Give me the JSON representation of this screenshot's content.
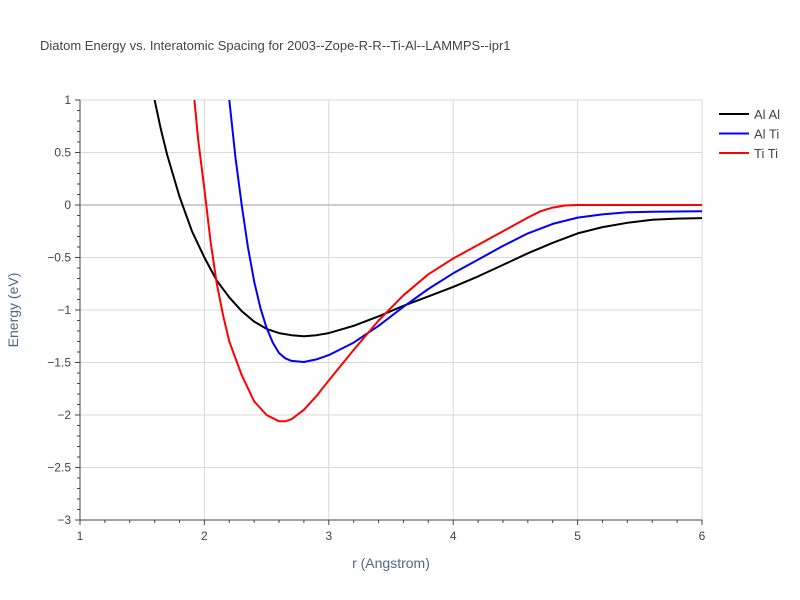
{
  "chart_data": {
    "type": "line",
    "title": "Diatom Energy vs. Interatomic Spacing for 2003--Zope-R-R--Ti-Al--LAMMPS--ipr1",
    "xlabel": "r (Angstrom)",
    "ylabel": "Energy (eV)",
    "xlim": [
      1,
      6
    ],
    "ylim": [
      -3,
      1
    ],
    "x_ticks": [
      1,
      2,
      3,
      4,
      5,
      6
    ],
    "x_tick_labels": [
      "1",
      "2",
      "3",
      "4",
      "5",
      "6"
    ],
    "y_ticks": [
      1,
      0.5,
      0,
      -0.5,
      -1,
      -1.5,
      -2,
      -2.5,
      -3
    ],
    "y_tick_labels": [
      "1",
      "0.5",
      "0",
      "−0.5",
      "−1",
      "−1.5",
      "−2",
      "−2.5",
      "−3"
    ],
    "grid": true,
    "legend_position": "top-right",
    "series": [
      {
        "name": "Al Al",
        "color": "#000000",
        "points": [
          [
            1.6,
            1.0
          ],
          [
            1.65,
            0.72
          ],
          [
            1.7,
            0.48
          ],
          [
            1.8,
            0.08
          ],
          [
            1.9,
            -0.25
          ],
          [
            2.0,
            -0.5
          ],
          [
            2.1,
            -0.72
          ],
          [
            2.2,
            -0.88
          ],
          [
            2.3,
            -1.01
          ],
          [
            2.4,
            -1.11
          ],
          [
            2.5,
            -1.18
          ],
          [
            2.6,
            -1.22
          ],
          [
            2.7,
            -1.24
          ],
          [
            2.8,
            -1.25
          ],
          [
            2.9,
            -1.24
          ],
          [
            3.0,
            -1.22
          ],
          [
            3.2,
            -1.15
          ],
          [
            3.4,
            -1.06
          ],
          [
            3.6,
            -0.96
          ],
          [
            3.8,
            -0.87
          ],
          [
            4.0,
            -0.78
          ],
          [
            4.2,
            -0.68
          ],
          [
            4.4,
            -0.57
          ],
          [
            4.6,
            -0.46
          ],
          [
            4.8,
            -0.36
          ],
          [
            5.0,
            -0.27
          ],
          [
            5.2,
            -0.21
          ],
          [
            5.4,
            -0.17
          ],
          [
            5.6,
            -0.14
          ],
          [
            5.8,
            -0.13
          ],
          [
            6.0,
            -0.125
          ]
        ]
      },
      {
        "name": "Al Ti",
        "color": "#0000ff",
        "points": [
          [
            2.2,
            1.0
          ],
          [
            2.25,
            0.45
          ],
          [
            2.3,
            0.0
          ],
          [
            2.35,
            -0.4
          ],
          [
            2.4,
            -0.73
          ],
          [
            2.45,
            -0.98
          ],
          [
            2.5,
            -1.17
          ],
          [
            2.55,
            -1.31
          ],
          [
            2.6,
            -1.41
          ],
          [
            2.65,
            -1.46
          ],
          [
            2.7,
            -1.485
          ],
          [
            2.8,
            -1.495
          ],
          [
            2.9,
            -1.47
          ],
          [
            3.0,
            -1.43
          ],
          [
            3.2,
            -1.31
          ],
          [
            3.4,
            -1.15
          ],
          [
            3.6,
            -0.97
          ],
          [
            3.8,
            -0.8
          ],
          [
            4.0,
            -0.65
          ],
          [
            4.2,
            -0.52
          ],
          [
            4.4,
            -0.39
          ],
          [
            4.6,
            -0.27
          ],
          [
            4.8,
            -0.18
          ],
          [
            5.0,
            -0.12
          ],
          [
            5.2,
            -0.09
          ],
          [
            5.4,
            -0.07
          ],
          [
            5.6,
            -0.065
          ],
          [
            5.8,
            -0.062
          ],
          [
            6.0,
            -0.06
          ]
        ]
      },
      {
        "name": "Ti Ti",
        "color": "#ff0000",
        "points": [
          [
            1.92,
            1.0
          ],
          [
            1.95,
            0.62
          ],
          [
            2.0,
            0.15
          ],
          [
            2.05,
            -0.35
          ],
          [
            2.1,
            -0.75
          ],
          [
            2.15,
            -1.05
          ],
          [
            2.2,
            -1.3
          ],
          [
            2.3,
            -1.62
          ],
          [
            2.4,
            -1.87
          ],
          [
            2.5,
            -2.0
          ],
          [
            2.6,
            -2.06
          ],
          [
            2.65,
            -2.06
          ],
          [
            2.7,
            -2.04
          ],
          [
            2.8,
            -1.95
          ],
          [
            2.9,
            -1.82
          ],
          [
            3.0,
            -1.67
          ],
          [
            3.2,
            -1.38
          ],
          [
            3.4,
            -1.1
          ],
          [
            3.6,
            -0.86
          ],
          [
            3.8,
            -0.66
          ],
          [
            4.0,
            -0.51
          ],
          [
            4.2,
            -0.38
          ],
          [
            4.4,
            -0.25
          ],
          [
            4.6,
            -0.12
          ],
          [
            4.7,
            -0.06
          ],
          [
            4.8,
            -0.025
          ],
          [
            4.9,
            -0.005
          ],
          [
            5.0,
            0.0
          ],
          [
            5.5,
            0.0
          ],
          [
            6.0,
            0.0
          ]
        ]
      }
    ]
  }
}
